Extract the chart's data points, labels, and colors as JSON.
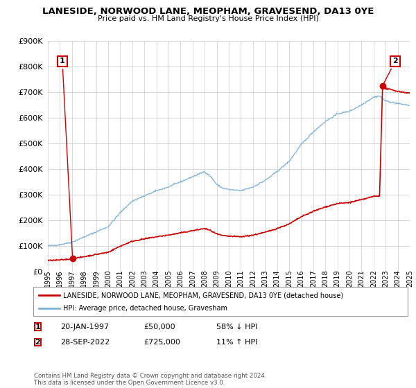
{
  "title": "LANESIDE, NORWOOD LANE, MEOPHAM, GRAVESEND, DA13 0YE",
  "subtitle": "Price paid vs. HM Land Registry's House Price Index (HPI)",
  "ylim": [
    0,
    900000
  ],
  "yticks": [
    0,
    100000,
    200000,
    300000,
    400000,
    500000,
    600000,
    700000,
    800000,
    900000
  ],
  "ytick_labels": [
    "£0",
    "£100K",
    "£200K",
    "£300K",
    "£400K",
    "£500K",
    "£600K",
    "£700K",
    "£800K",
    "£900K"
  ],
  "background_color": "#ffffff",
  "grid_color": "#cccccc",
  "hpi_color": "#7bafd4",
  "price_color": "#cc0000",
  "sale1_x": 1997.05,
  "sale1_y": 50000,
  "sale2_x": 2022.74,
  "sale2_y": 725000,
  "legend_house": "LANESIDE, NORWOOD LANE, MEOPHAM, GRAVESEND, DA13 0YE (detached house)",
  "legend_hpi": "HPI: Average price, detached house, Gravesham",
  "footer": "Contains HM Land Registry data © Crown copyright and database right 2024.\nThis data is licensed under the Open Government Licence v3.0.",
  "xmin": 1995,
  "xmax": 2025
}
